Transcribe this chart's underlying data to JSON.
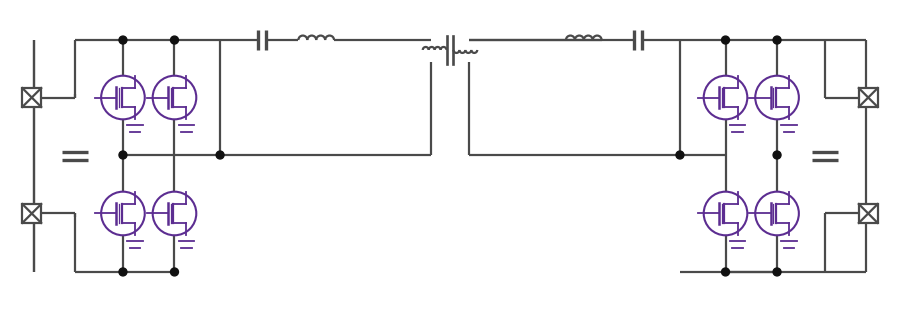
{
  "bg_color": "#ffffff",
  "line_color": "#4a4a4a",
  "mosfet_color": "#5c2d91",
  "dot_color": "#111111",
  "figsize": [
    9.0,
    3.11
  ],
  "dpi": 100,
  "lw": 1.6,
  "mlw": 1.3,
  "xlim": [
    0,
    9
  ],
  "ylim": [
    0,
    3.11
  ],
  "y_top": 2.75,
  "y_upper_mid": 1.95,
  "y_lower_mid": 1.16,
  "y_bot": 0.36,
  "x_left_outer": 0.3,
  "x_left_cap": 0.72,
  "x_lbridge_L": 1.2,
  "x_lbridge_R": 1.72,
  "x_mid_node_L": 2.18,
  "x_tank_cap_L": 2.6,
  "x_ind_L": 3.15,
  "x_trafo": 4.5,
  "x_ind_R": 5.85,
  "x_tank_cap_R": 6.4,
  "x_mid_node_R": 6.82,
  "x_rbridge_L": 7.28,
  "x_rbridge_R": 7.8,
  "x_right_cap": 8.28,
  "x_right_outer": 8.7
}
